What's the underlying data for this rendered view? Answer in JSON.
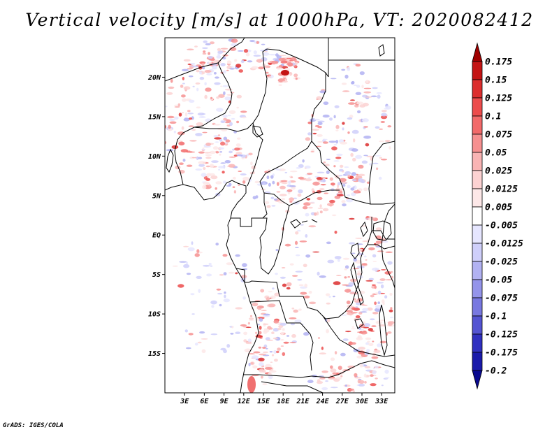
{
  "title": "Vertical velocity [m/s] at 1000hPa, VT: 2020082412",
  "footer": "GrADS: IGES/COLA",
  "map": {
    "lon_range": [
      0,
      35
    ],
    "lat_range": [
      -20,
      25
    ],
    "lat_labels": [
      "20N",
      "15N",
      "10N",
      "5N",
      "EQ",
      "5S",
      "10S",
      "15S"
    ],
    "lat_values": [
      20,
      15,
      10,
      5,
      0,
      -5,
      -10,
      -15
    ],
    "lon_labels": [
      "3E",
      "6E",
      "9E",
      "12E",
      "15E",
      "18E",
      "21E",
      "24E",
      "27E",
      "30E",
      "33E"
    ],
    "lon_values": [
      3,
      6,
      9,
      12,
      15,
      18,
      21,
      24,
      27,
      30,
      33
    ]
  },
  "colorbar": {
    "levels": [
      "0.175",
      "0.15",
      "0.125",
      "0.1",
      "0.075",
      "0.05",
      "0.025",
      "0.0125",
      "0.005",
      "-0.005",
      "-0.0125",
      "-0.025",
      "-0.05",
      "-0.075",
      "-0.1",
      "-0.125",
      "-0.175",
      "-0.2"
    ],
    "colors": [
      "#a00000",
      "#c41414",
      "#dc2e2e",
      "#ec4c4c",
      "#f26a6a",
      "#f69090",
      "#f9b4b4",
      "#fcd2d2",
      "#fde8e8",
      "#ffffff",
      "#e6e6ff",
      "#cfcffa",
      "#b2b2f2",
      "#9494ea",
      "#7878e0",
      "#5454d2",
      "#3030c0",
      "#1a1aaa",
      "#0a0a90"
    ]
  }
}
